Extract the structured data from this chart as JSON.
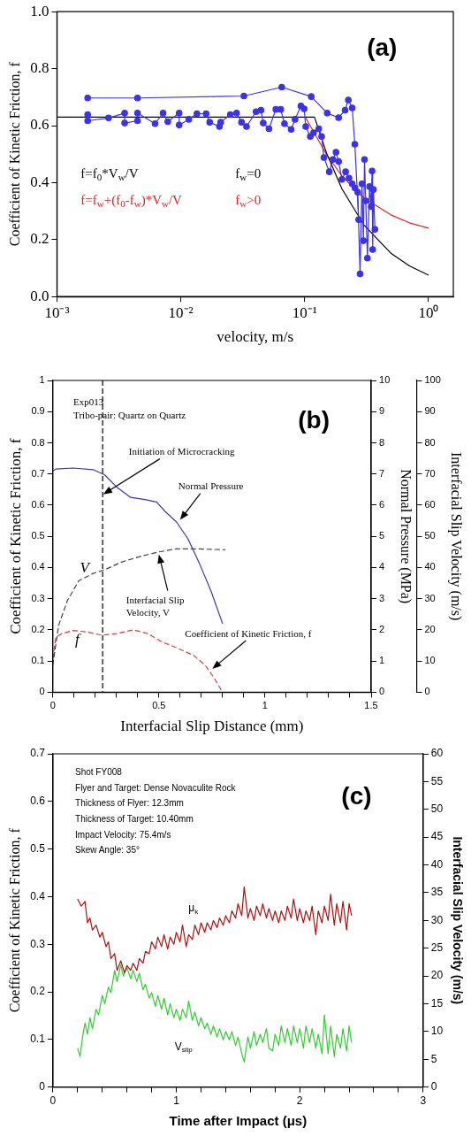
{
  "chart_data": [
    {
      "type": "line",
      "title": "(a)",
      "xlabel": "velocity, m/s",
      "ylabel": "Coefficient of Kinetic Friction, f",
      "log": "x",
      "grid": false,
      "marker": "none",
      "xlim": [
        0.001,
        1.585
      ],
      "xticks": [
        {
          "value": 0.001,
          "label": "10⁻³"
        },
        {
          "value": 0.01,
          "label": "10⁻²"
        },
        {
          "value": 0.1,
          "label": "10⁻¹"
        },
        {
          "value": 1,
          "label": "10⁰"
        }
      ],
      "ylim": [
        0,
        1
      ],
      "yticks": [
        {
          "value": 0,
          "label": "0.0"
        },
        0.2,
        0.4,
        0.6,
        0.8,
        {
          "value": 1,
          "label": "1.0"
        }
      ],
      "series": [
        {
          "color": "#3c32e6",
          "marker": "circle",
          "x": [
            0.00177,
            0.00447,
            0.0323,
            0.0653,
            0.113,
            0.152,
            0.188,
            0.212,
            0.225,
            0.242,
            0.254,
            0.273
          ],
          "values": [
            0.697,
            0.697,
            0.704,
            0.735,
            0.702,
            0.644,
            0.628,
            0.654,
            0.69,
            0.662,
            0.535,
            0.27
          ]
        },
        {
          "color": "#3c32e6",
          "marker": "circle",
          "x": [
            0.00177,
            0.00177,
            0.00261,
            0.00352,
            0.00352,
            0.00447,
            0.00447,
            0.00619,
            0.00719,
            0.00785,
            0.0097,
            0.0097,
            0.0116,
            0.0135,
            0.016,
            0.0171,
            0.0205,
            0.021,
            0.0251,
            0.0282,
            0.0309,
            0.0339,
            0.0405,
            0.0444,
            0.0463,
            0.0515,
            0.0585,
            0.0641,
            0.0687,
            0.0777,
            0.0836,
            0.0932,
            0.099,
            0.102,
            0.111,
            0.118,
            0.13,
            0.137,
            0.143,
            0.158,
            0.169,
            0.179,
            0.188,
            0.2,
            0.214,
            0.228,
            0.242,
            0.255,
            0.268,
            0.28,
            0.29,
            0.298,
            0.304,
            0.311,
            0.321,
            0.334,
            0.344,
            0.35,
            0.354,
            0.359,
            0.369
          ],
          "values": [
            0.639,
            0.617,
            0.627,
            0.644,
            0.609,
            0.617,
            0.644,
            0.607,
            0.644,
            0.614,
            0.644,
            0.602,
            0.622,
            0.642,
            0.642,
            0.612,
            0.597,
            0.612,
            0.639,
            0.644,
            0.612,
            0.597,
            0.649,
            0.654,
            0.609,
            0.589,
            0.657,
            0.657,
            0.607,
            0.587,
            0.622,
            0.669,
            0.659,
            0.597,
            0.562,
            0.575,
            0.589,
            0.562,
            0.488,
            0.438,
            0.481,
            0.507,
            0.474,
            0.411,
            0.438,
            0.416,
            0.396,
            0.381,
            0.366,
            0.08,
            0.396,
            0.196,
            0.481,
            0.336,
            0.135,
            0.386,
            0.316,
            0.441,
            0.165,
            0.376,
            0.236
          ]
        },
        {
          "name": "f=f$_{0}$*V$_{w}$/V      f$_{w}$=0",
          "color": "#000000",
          "x": [
            0.001,
            0.12,
            0.15,
            0.2,
            0.3,
            0.5,
            0.7,
            1
          ],
          "values": [
            0.63,
            0.63,
            0.504,
            0.378,
            0.252,
            0.151,
            0.108,
            0.075
          ]
        },
        {
          "name": "f=f$_{w}$+(f$_{0}$-f$_{w}$)*V$_{w}$/V      f$_{w}$>0",
          "color": "#e02020",
          "x": [
            0.102,
            0.15,
            0.2,
            0.3,
            0.5,
            0.7,
            1
          ],
          "values": [
            0.627,
            0.499,
            0.423,
            0.346,
            0.286,
            0.259,
            0.24
          ]
        }
      ]
    },
    {
      "type": "line",
      "title": "(b)",
      "xlabel": "Interfacial Slip Distance (mm)",
      "ylabel": "Coefficient of Kinetic Friction, f",
      "y2label": "Normal Pressure (MPa)",
      "y3label": "Interfacial Slip Velocity (m/s)",
      "grid": false,
      "marker": "none",
      "xlim": [
        0,
        1.5
      ],
      "xticks": [
        0,
        {
          "value": 0.1,
          "label": null
        },
        {
          "value": 0.2,
          "label": null
        },
        {
          "value": 0.3,
          "label": null
        },
        {
          "value": 0.4,
          "label": null
        },
        0.5,
        {
          "value": 0.6,
          "label": null
        },
        {
          "value": 0.7,
          "label": null
        },
        {
          "value": 0.8,
          "label": null
        },
        {
          "value": 0.9,
          "label": null
        },
        1,
        {
          "value": 1.1,
          "label": null
        },
        {
          "value": 1.2,
          "label": null
        },
        {
          "value": 1.3,
          "label": null
        },
        {
          "value": 1.4,
          "label": null
        },
        1.5
      ],
      "ylim": [
        0,
        1
      ],
      "yticks": [
        0,
        0.1,
        0.2,
        0.3,
        0.4,
        0.5,
        0.6,
        0.7,
        0.8,
        0.9,
        1
      ],
      "y2lim": [
        0,
        10
      ],
      "y2ticks": [
        0,
        1,
        2,
        3,
        4,
        5,
        6,
        7,
        8,
        9,
        10
      ],
      "y3lim": [
        0,
        100
      ],
      "y3ticks": [
        0,
        10,
        20,
        30,
        40,
        50,
        60,
        70,
        80,
        90,
        100
      ],
      "ref_lines": [
        {
          "axis": "x",
          "value": 0.235,
          "color": "#000000",
          "line_style": "dashed"
        }
      ],
      "annotations": [
        "Exp013",
        "Tribo-pair: Quartz on Quartz",
        {
          "text": "Initiation of Microcracking",
          "x": 0.238,
          "y": 0.635
        },
        {
          "text": "Normal Pressure",
          "x": 0.6,
          "y": 0.553
        },
        {
          "text": "Interfacial Slip\nVelocity, V",
          "x": 0.5,
          "y": 0.442
        },
        {
          "text": "Coefficient of Kinetic Friction, f",
          "x": 0.752,
          "y": 0.075
        },
        "V",
        "f"
      ],
      "series": [
        {
          "color": "#3838a8",
          "axis": "y2",
          "x": [
            0,
            0.015,
            0.096,
            0.19,
            0.245,
            0.3,
            0.367,
            0.434,
            0.489,
            0.529,
            0.583,
            0.637,
            0.691,
            0.746,
            0.8
          ],
          "values": [
            7.09,
            7.16,
            7.19,
            7.14,
            6.97,
            6.59,
            6.25,
            6.18,
            6.1,
            5.8,
            5.46,
            4.92,
            4.13,
            3.24,
            2.2
          ]
        },
        {
          "color": "#444444",
          "axis": "y3",
          "line_style": "dashed",
          "x": [
            0,
            0.028,
            0.069,
            0.123,
            0.19,
            0.245,
            0.326,
            0.42,
            0.5,
            0.583,
            0.664,
            0.813
          ],
          "values": [
            8.7,
            21.5,
            29.4,
            35.8,
            38.1,
            39.3,
            41.8,
            43.7,
            45,
            46,
            46,
            45.7
          ]
        },
        {
          "color": "#d04040",
          "line_style": "dashed",
          "x": [
            0,
            0.015,
            0.042,
            0.096,
            0.164,
            0.231,
            0.3,
            0.38,
            0.448,
            0.516,
            0.583,
            0.664,
            0.718,
            0.759,
            0.797
          ],
          "values": [
            0.107,
            0.176,
            0.188,
            0.198,
            0.193,
            0.183,
            0.188,
            0.2,
            0.188,
            0.161,
            0.143,
            0.118,
            0.087,
            0.047,
            0.003
          ]
        }
      ]
    },
    {
      "type": "line",
      "title": "(c)",
      "xlabel": "Time after Impact (μs)",
      "ylabel": "Coefficient of Kinetic Friction, f",
      "y2label": "Interfacial Slip Velocity (m/s)",
      "grid": false,
      "marker": "none",
      "xlim": [
        0,
        3
      ],
      "xticks": [
        0,
        {
          "value": 0.2,
          "label": null
        },
        {
          "value": 0.4,
          "label": null
        },
        {
          "value": 0.6,
          "label": null
        },
        {
          "value": 0.8,
          "label": null
        },
        1,
        {
          "value": 1.2,
          "label": null
        },
        {
          "value": 1.4,
          "label": null
        },
        {
          "value": 1.6,
          "label": null
        },
        {
          "value": 1.8,
          "label": null
        },
        2,
        {
          "value": 2.2,
          "label": null
        },
        {
          "value": 2.4,
          "label": null
        },
        {
          "value": 2.6,
          "label": null
        },
        {
          "value": 2.8,
          "label": null
        },
        3
      ],
      "ylim": [
        0,
        0.7
      ],
      "yticks": [
        0,
        0.1,
        0.2,
        0.3,
        0.4,
        0.5,
        0.6,
        0.7
      ],
      "y2lim": [
        0,
        60
      ],
      "y2ticks": [
        0,
        5,
        10,
        15,
        20,
        25,
        30,
        35,
        40,
        45,
        50,
        55,
        60
      ],
      "annotations": [
        "Shot FY008",
        "Flyer and Target: Dense Novaculite Rock",
        "Thickness of Flyer: 12.3mm",
        "Thickness of Target: 10.40mm",
        "Impact Velocity: 75.4m/s",
        "Skew Angle: 35°",
        "μ$_{k}$",
        "V$_{slip}$"
      ],
      "series": [
        {
          "color": "#b01010",
          "x": [
            0.2,
            0.23,
            0.26,
            0.28,
            0.3,
            0.32,
            0.35,
            0.38,
            0.4,
            0.43,
            0.45,
            0.47,
            0.5,
            0.52,
            0.55,
            0.58,
            0.6,
            0.63,
            0.65,
            0.68,
            0.7,
            0.73,
            0.75,
            0.78,
            0.8,
            0.83,
            0.85,
            0.88,
            0.9,
            0.93,
            0.95,
            0.98,
            1.0,
            1.03,
            1.05,
            1.08,
            1.1,
            1.13,
            1.15,
            1.18,
            1.2,
            1.23,
            1.25,
            1.28,
            1.3,
            1.33,
            1.35,
            1.38,
            1.4,
            1.43,
            1.45,
            1.48,
            1.5,
            1.53,
            1.55,
            1.58,
            1.6,
            1.63,
            1.65,
            1.68,
            1.7,
            1.73,
            1.75,
            1.78,
            1.8,
            1.83,
            1.85,
            1.88,
            1.9,
            1.93,
            1.95,
            1.98,
            2.0,
            2.03,
            2.05,
            2.08,
            2.1,
            2.13,
            2.15,
            2.18,
            2.2,
            2.23,
            2.25,
            2.28,
            2.3,
            2.33,
            2.35,
            2.38,
            2.4,
            2.42
          ],
          "values": [
            0.395,
            0.38,
            0.39,
            0.345,
            0.355,
            0.33,
            0.34,
            0.315,
            0.325,
            0.295,
            0.305,
            0.27,
            0.28,
            0.245,
            0.265,
            0.24,
            0.255,
            0.245,
            0.26,
            0.245,
            0.27,
            0.26,
            0.285,
            0.28,
            0.305,
            0.29,
            0.315,
            0.295,
            0.32,
            0.29,
            0.315,
            0.3,
            0.325,
            0.305,
            0.34,
            0.295,
            0.32,
            0.31,
            0.34,
            0.32,
            0.345,
            0.325,
            0.345,
            0.33,
            0.35,
            0.335,
            0.355,
            0.34,
            0.36,
            0.345,
            0.37,
            0.355,
            0.385,
            0.36,
            0.42,
            0.355,
            0.375,
            0.35,
            0.38,
            0.36,
            0.385,
            0.355,
            0.375,
            0.35,
            0.37,
            0.345,
            0.37,
            0.35,
            0.38,
            0.355,
            0.395,
            0.35,
            0.375,
            0.345,
            0.37,
            0.35,
            0.38,
            0.32,
            0.37,
            0.345,
            0.38,
            0.35,
            0.405,
            0.34,
            0.385,
            0.345,
            0.39,
            0.33,
            0.385,
            0.36
          ]
        },
        {
          "color": "#33cc33",
          "axis": "y2",
          "x": [
            0.2,
            0.22,
            0.24,
            0.26,
            0.28,
            0.3,
            0.32,
            0.35,
            0.37,
            0.4,
            0.42,
            0.45,
            0.47,
            0.5,
            0.52,
            0.55,
            0.57,
            0.6,
            0.63,
            0.65,
            0.68,
            0.7,
            0.73,
            0.75,
            0.78,
            0.8,
            0.83,
            0.85,
            0.88,
            0.9,
            0.93,
            0.95,
            0.98,
            1.0,
            1.03,
            1.05,
            1.08,
            1.1,
            1.13,
            1.15,
            1.18,
            1.2,
            1.23,
            1.25,
            1.28,
            1.3,
            1.33,
            1.35,
            1.38,
            1.4,
            1.43,
            1.45,
            1.48,
            1.5,
            1.53,
            1.55,
            1.58,
            1.6,
            1.63,
            1.65,
            1.68,
            1.7,
            1.73,
            1.75,
            1.78,
            1.8,
            1.83,
            1.85,
            1.88,
            1.9,
            1.93,
            1.95,
            1.98,
            2.0,
            2.03,
            2.05,
            2.08,
            2.1,
            2.13,
            2.15,
            2.18,
            2.2,
            2.23,
            2.25,
            2.28,
            2.3,
            2.33,
            2.35,
            2.38,
            2.4,
            2.42
          ],
          "values": [
            7,
            5.5,
            9,
            11.5,
            9.5,
            12.5,
            10.5,
            14,
            13,
            16.5,
            15,
            18,
            17,
            21,
            19,
            22,
            20,
            21.5,
            19.5,
            21,
            19,
            20.5,
            17.5,
            18.5,
            16,
            17,
            14.5,
            16.5,
            14,
            16,
            13,
            15,
            12.5,
            14,
            12,
            14,
            12.5,
            15.5,
            12,
            13.5,
            11,
            12.5,
            10.5,
            11.5,
            9.5,
            11,
            9,
            10.5,
            8.5,
            10,
            8.5,
            10,
            7.5,
            9,
            6,
            4.5,
            9,
            7,
            10,
            7.5,
            9.5,
            8,
            10.5,
            7,
            6.5,
            9.5,
            7.5,
            11,
            8,
            10.5,
            7.5,
            11,
            8,
            10.5,
            7,
            11,
            8,
            10.5,
            7,
            9.5,
            6,
            13,
            6,
            11,
            5.5,
            9.5,
            7,
            10.5,
            6.5,
            11,
            8
          ]
        }
      ]
    }
  ]
}
